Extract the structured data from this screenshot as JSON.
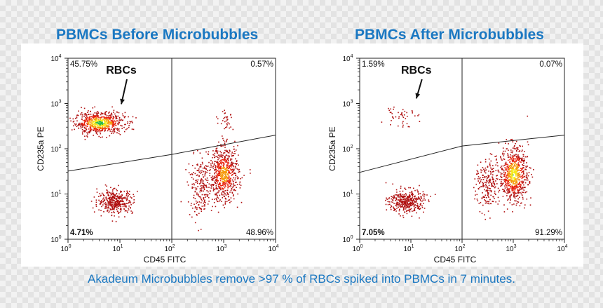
{
  "colors": {
    "accent": "#1b78c2"
  },
  "caption": "Akadeum Microbubbles remove >97 % of RBCs spiked into PBMCs in 7 minutes.",
  "chart_data": [
    {
      "type": "scatter",
      "title": "PBMCs Before Microbubbles",
      "xlabel": "CD45 FITC",
      "ylabel": "CD235a PE",
      "xscale": "log",
      "yscale": "log",
      "xlim": [
        1,
        10000
      ],
      "ylim": [
        1,
        10000
      ],
      "x_ticks": [
        {
          "base": "10",
          "exp": "0"
        },
        {
          "base": "10",
          "exp": "1"
        },
        {
          "base": "10",
          "exp": "2"
        },
        {
          "base": "10",
          "exp": "3"
        },
        {
          "base": "10",
          "exp": "4"
        }
      ],
      "y_ticks": [
        {
          "base": "10",
          "exp": "0"
        },
        {
          "base": "10",
          "exp": "1"
        },
        {
          "base": "10",
          "exp": "2"
        },
        {
          "base": "10",
          "exp": "3"
        },
        {
          "base": "10",
          "exp": "4"
        }
      ],
      "quadrant_x": 100,
      "gate_line": [
        [
          1,
          32
        ],
        [
          100,
          75
        ],
        [
          10000,
          200
        ]
      ],
      "quadrants": {
        "top_left": "45.75%",
        "top_right": "0.57%",
        "bottom_left": "4.71%",
        "bottom_right": "48.96%"
      },
      "annotation": {
        "label": "RBCs",
        "x": 10,
        "y": 900
      },
      "populations": [
        {
          "name": "RBC cluster",
          "cx": 4,
          "cy": 380,
          "sx": 0.24,
          "sy": 0.12,
          "n": 650,
          "dens": 1.0
        },
        {
          "name": "bottom-left cluster",
          "cx": 8,
          "cy": 7,
          "sx": 0.17,
          "sy": 0.13,
          "n": 380,
          "dens": 0.3
        },
        {
          "name": "leukocyte cluster",
          "cx": 1000,
          "cy": 28,
          "sx": 0.14,
          "sy": 0.3,
          "n": 650,
          "dens": 0.75
        },
        {
          "name": "leukocyte tail",
          "cx": 350,
          "cy": 14,
          "sx": 0.12,
          "sy": 0.32,
          "n": 200,
          "dens": 0.3
        },
        {
          "name": "sparse top-right",
          "cx": 1100,
          "cy": 450,
          "sx": 0.07,
          "sy": 0.12,
          "n": 30,
          "dens": 0.1
        }
      ]
    },
    {
      "type": "scatter",
      "title": "PBMCs After Microbubbles",
      "xlabel": "CD45 FITC",
      "ylabel": "CD235a PE",
      "xscale": "log",
      "yscale": "log",
      "xlim": [
        1,
        10000
      ],
      "ylim": [
        1,
        10000
      ],
      "x_ticks": [
        {
          "base": "10",
          "exp": "0"
        },
        {
          "base": "10",
          "exp": "1"
        },
        {
          "base": "10",
          "exp": "2"
        },
        {
          "base": "10",
          "exp": "3"
        },
        {
          "base": "10",
          "exp": "4"
        }
      ],
      "y_ticks": [
        {
          "base": "10",
          "exp": "0"
        },
        {
          "base": "10",
          "exp": "1"
        },
        {
          "base": "10",
          "exp": "2"
        },
        {
          "base": "10",
          "exp": "3"
        },
        {
          "base": "10",
          "exp": "4"
        }
      ],
      "quadrant_x": 100,
      "gate_line": [
        [
          1,
          30
        ],
        [
          100,
          115
        ],
        [
          10000,
          200
        ]
      ],
      "quadrants": {
        "top_left": "1.59%",
        "top_right": "0.07%",
        "bottom_left": "7.05%",
        "bottom_right": "91.29%"
      },
      "annotation": {
        "label": "RBCs",
        "x": 12,
        "y": 1200
      },
      "populations": [
        {
          "name": "residual RBCs",
          "cx": 6,
          "cy": 600,
          "sx": 0.14,
          "sy": 0.14,
          "n": 45,
          "dens": 0.1
        },
        {
          "name": "bottom-left cluster",
          "cx": 8,
          "cy": 7,
          "sx": 0.17,
          "sy": 0.13,
          "n": 380,
          "dens": 0.3
        },
        {
          "name": "leukocyte cluster",
          "cx": 1000,
          "cy": 28,
          "sx": 0.14,
          "sy": 0.3,
          "n": 700,
          "dens": 0.9
        },
        {
          "name": "leukocyte tail",
          "cx": 300,
          "cy": 15,
          "sx": 0.11,
          "sy": 0.3,
          "n": 200,
          "dens": 0.3
        }
      ]
    }
  ]
}
